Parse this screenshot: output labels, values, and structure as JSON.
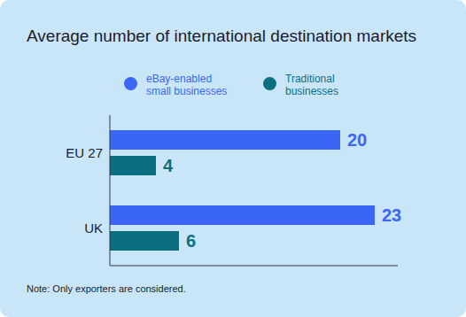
{
  "chart_data": {
    "type": "bar",
    "title": "Average number of international destination markets",
    "orientation": "horizontal",
    "categories": [
      "EU 27",
      "UK"
    ],
    "series": [
      {
        "name": "eBay-enabled small businesses",
        "color": "#3b66f5",
        "values": [
          20,
          23
        ]
      },
      {
        "name": "Traditional businesses",
        "color": "#0b6f80",
        "values": [
          4,
          6
        ]
      }
    ],
    "xlim": [
      0,
      25
    ],
    "data_labels": true,
    "tick_labels": "y",
    "legend": "top",
    "annotations": [
      "Note: Only exporters are considered."
    ]
  }
}
